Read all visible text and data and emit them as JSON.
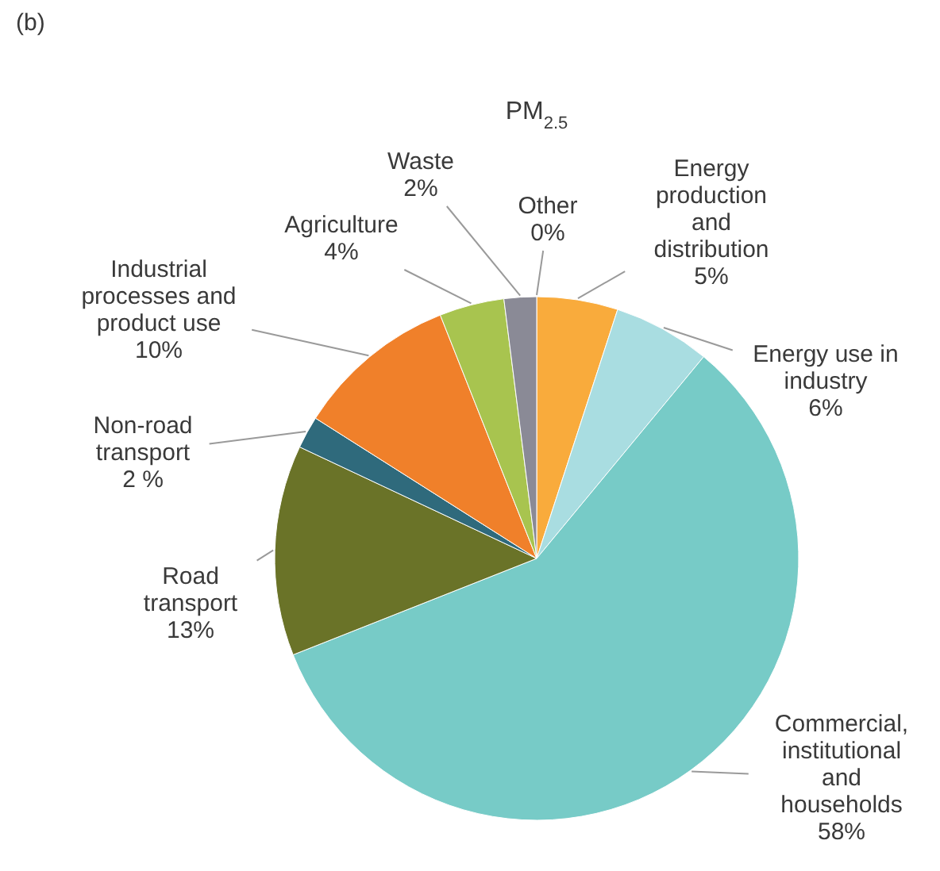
{
  "chart_data": {
    "type": "pie",
    "title": "PM$_{2.5}$",
    "categories": [
      "Other",
      "Energy production and distribution",
      "Energy use in industry",
      "Commercial, institutional and households",
      "Road transport",
      "Non-road transport",
      "Industrial processes and product use",
      "Agriculture",
      "Waste"
    ],
    "values": [
      0,
      5,
      6,
      58,
      13,
      2,
      10,
      4,
      2
    ],
    "colors": [
      "#8c8ca0",
      "#f9ab3c",
      "#a9dde1",
      "#77cbc7",
      "#6a7328",
      "#2f6a7c",
      "#f0802a",
      "#a8c44f",
      "#8a8a96"
    ],
    "value_labels": [
      "0%",
      "5%",
      "6%",
      "58%",
      "13%",
      "2 %",
      "10%",
      "4%",
      "2%"
    ],
    "annotations": [
      "(b)"
    ]
  }
}
